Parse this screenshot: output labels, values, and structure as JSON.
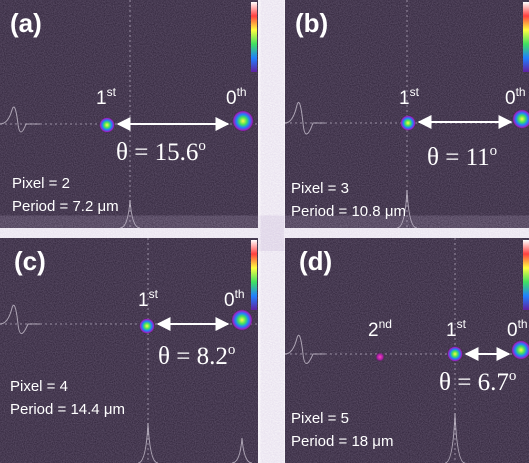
{
  "panels": [
    {
      "label": "(a)",
      "orders": [
        {
          "base": "1",
          "sup": "st"
        },
        {
          "base": "0",
          "sup": "th"
        }
      ],
      "angle": {
        "text": "θ = 15.6",
        "sup": "o"
      },
      "pixel": "Pixel = 2",
      "period": "Period = 7.2 μm"
    },
    {
      "label": "(b)",
      "orders": [
        {
          "base": "1",
          "sup": "st"
        },
        {
          "base": "0",
          "sup": "th"
        }
      ],
      "angle": {
        "text": "θ = 11",
        "sup": "o"
      },
      "pixel": "Pixel = 3",
      "period": "Period = 10.8 μm"
    },
    {
      "label": "(c)",
      "orders": [
        {
          "base": "1",
          "sup": "st"
        },
        {
          "base": "0",
          "sup": "th"
        }
      ],
      "angle": {
        "text": "θ = 8.2",
        "sup": "o"
      },
      "pixel": "Pixel = 4",
      "period": "Period = 14.4 μm"
    },
    {
      "label": "(d)",
      "orders": [
        {
          "base": "2",
          "sup": "nd"
        },
        {
          "base": "1",
          "sup": "st"
        },
        {
          "base": "0",
          "sup": "th"
        }
      ],
      "angle": {
        "text": "θ = 6.7",
        "sup": "o"
      },
      "pixel": "Pixel = 5",
      "period": "Period = 18 μm"
    }
  ]
}
